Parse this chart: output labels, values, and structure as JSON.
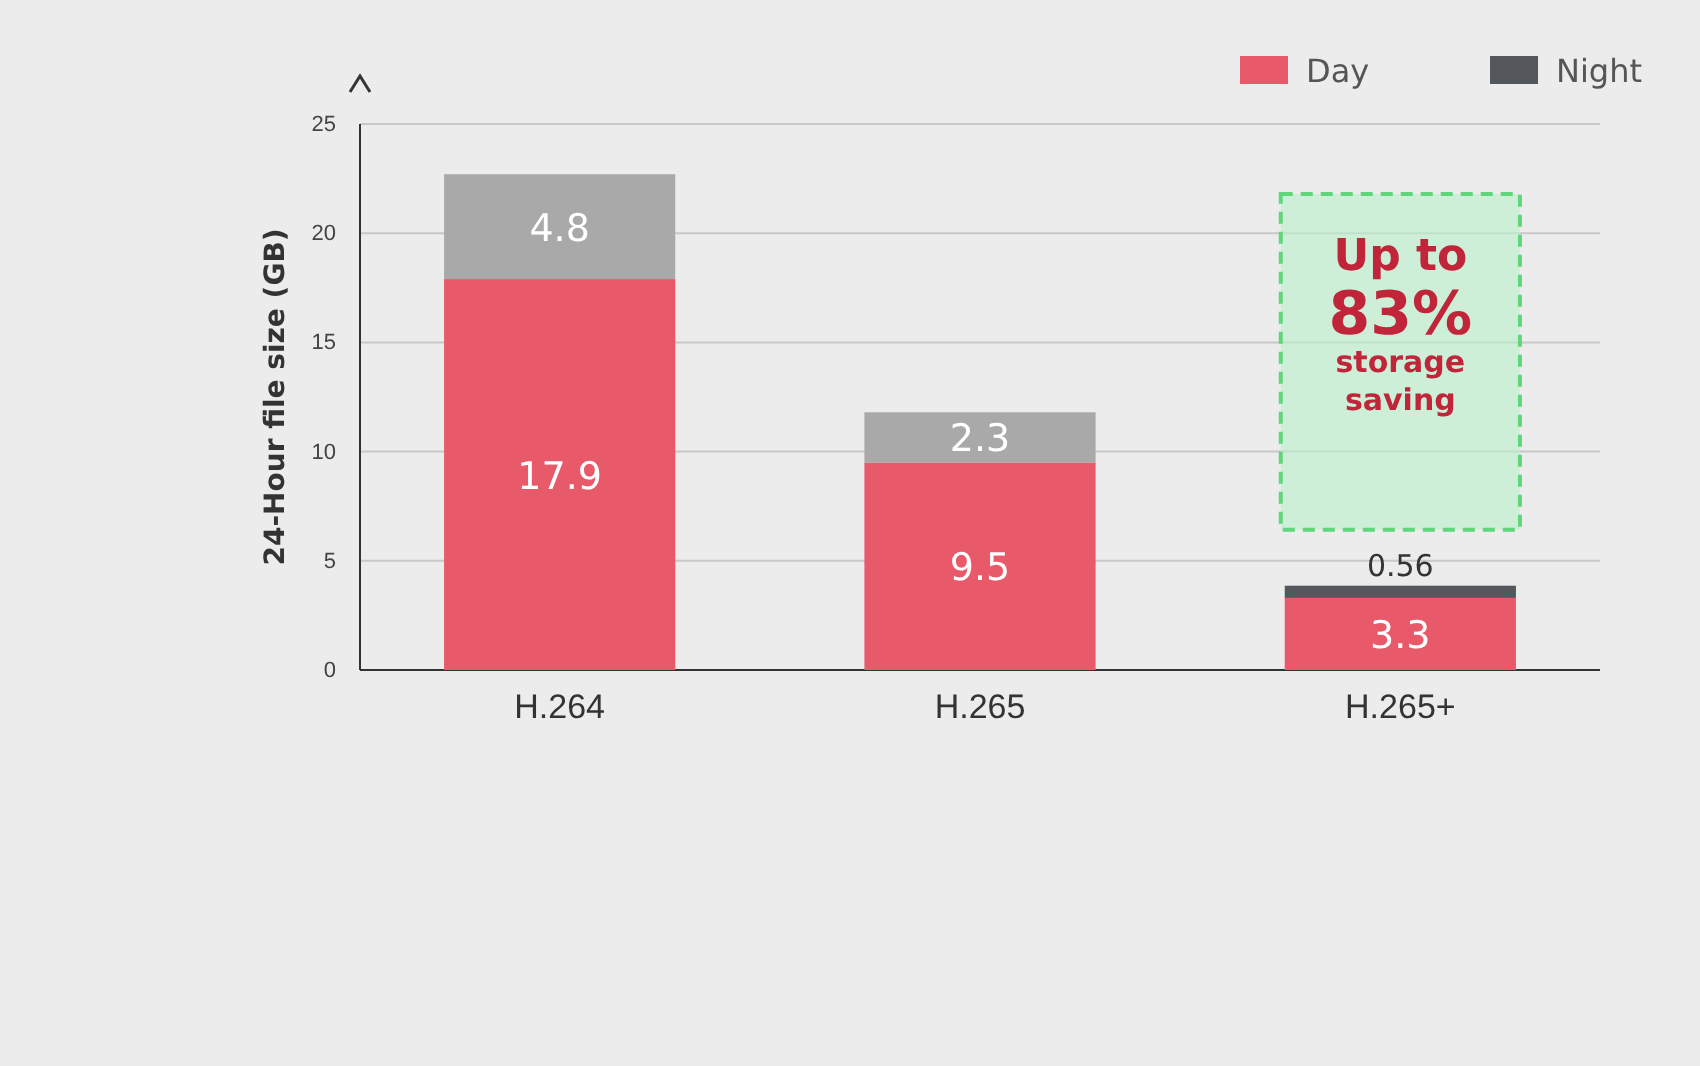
{
  "chart_data": {
    "type": "bar",
    "stacked": true,
    "ylabel": "24-Hour file size (GB)",
    "categories": [
      "H.264",
      "H.265",
      "H.265+"
    ],
    "series": [
      {
        "name": "Day",
        "color": "#e85a6a",
        "values": [
          17.9,
          9.5,
          3.3
        ]
      },
      {
        "name": "Night",
        "color": "#54575c",
        "colors": [
          "#a9a9a9",
          "#a9a9a9",
          "#54575c"
        ],
        "values": [
          4.8,
          2.3,
          0.56
        ]
      }
    ],
    "ylim": [
      0,
      25
    ],
    "yticks": [
      0,
      5,
      10,
      15,
      20,
      25
    ],
    "grid": "y",
    "legend": "top right",
    "data_labels": true,
    "annotations": [
      "Up to 83% storage saving"
    ]
  }
}
